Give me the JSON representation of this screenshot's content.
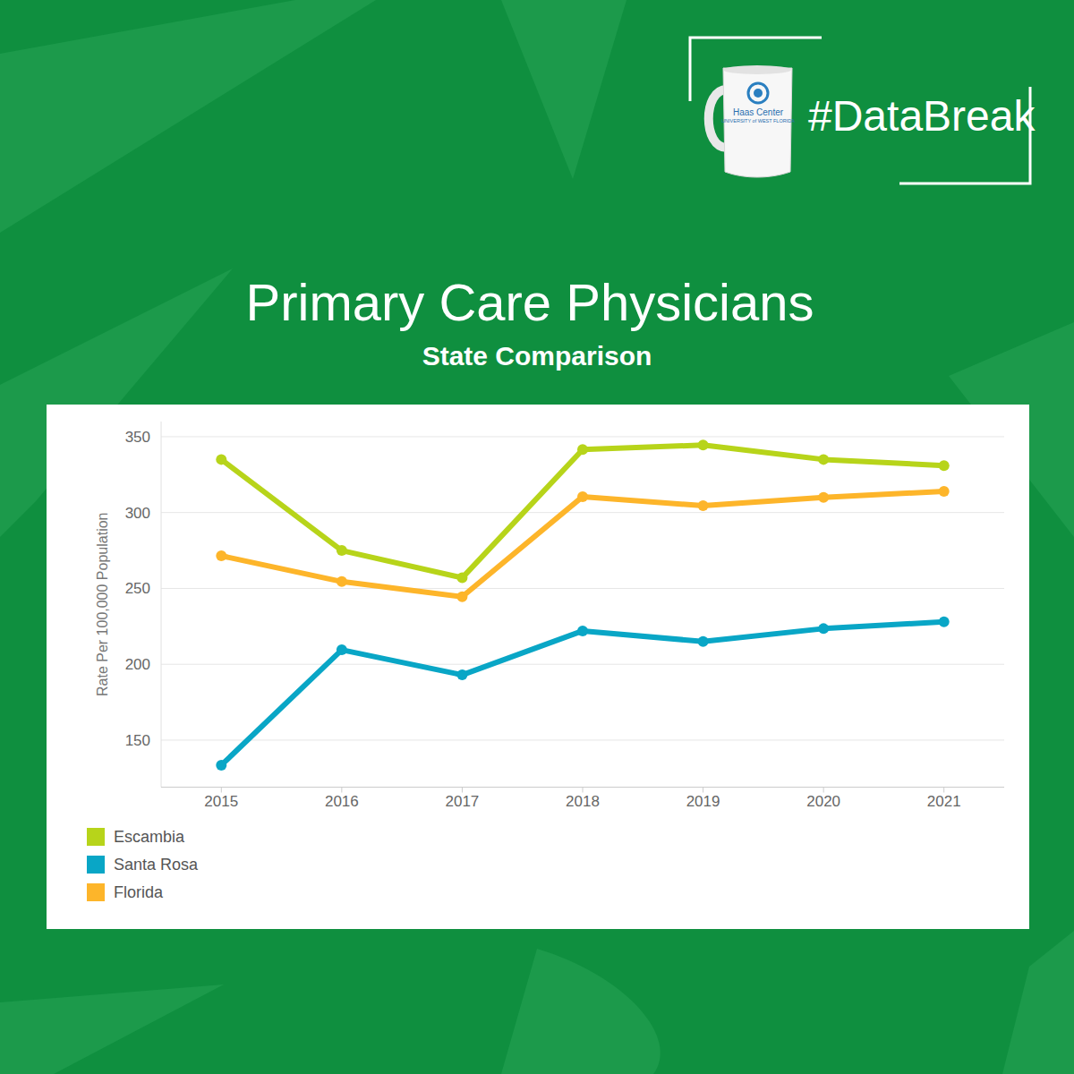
{
  "header": {
    "hashtag": "#DataBreak",
    "logo": [
      "Haas Center",
      "UNIVERSITY of WEST FLORIDA"
    ]
  },
  "chart_data": {
    "type": "line",
    "title": "Primary Care Physicians",
    "subtitle": "State Comparison",
    "y_label": "Rate Per 100,000 Population",
    "categories": [
      "2015",
      "2016",
      "2017",
      "2018",
      "2019",
      "2020",
      "2021"
    ],
    "series": [
      {
        "name": "Escambia",
        "color": "#b7d41a",
        "values": [
          335,
          275,
          257,
          341.5,
          344.5,
          335,
          331
        ]
      },
      {
        "name": "Santa Rosa",
        "color": "#09a6c6",
        "values": [
          133.5,
          209.5,
          193,
          222,
          215,
          223.5,
          228
        ]
      },
      {
        "name": "Florida",
        "color": "#fdb52a",
        "values": [
          271.5,
          254.5,
          244.5,
          310.5,
          304.5,
          310,
          314
        ]
      }
    ],
    "ylim": [
      119,
      360
    ],
    "yticks": [
      150,
      200,
      250,
      300,
      350
    ],
    "grid": true,
    "legend": "bottom-left",
    "marker": "circle"
  }
}
